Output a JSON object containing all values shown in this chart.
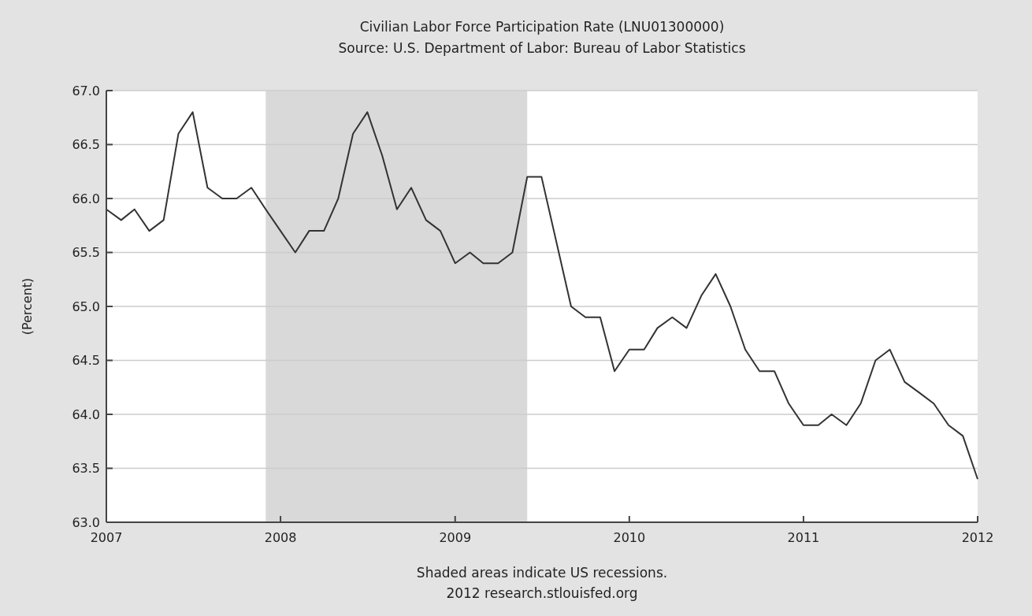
{
  "chart_data": {
    "type": "line",
    "title": "Civilian Labor Force Participation Rate (LNU01300000)",
    "subtitle": "Source: U.S. Department of Labor: Bureau of Labor Statistics",
    "ylabel": "(Percent)",
    "annotations": [
      "Shaded areas indicate US recessions.",
      "2012 research.stlouisfed.org"
    ],
    "x": [
      "2007-01",
      "2007-02",
      "2007-03",
      "2007-04",
      "2007-05",
      "2007-06",
      "2007-07",
      "2007-08",
      "2007-09",
      "2007-10",
      "2007-11",
      "2007-12",
      "2008-01",
      "2008-02",
      "2008-03",
      "2008-04",
      "2008-05",
      "2008-06",
      "2008-07",
      "2008-08",
      "2008-09",
      "2008-10",
      "2008-11",
      "2008-12",
      "2009-01",
      "2009-02",
      "2009-03",
      "2009-04",
      "2009-05",
      "2009-06",
      "2009-07",
      "2009-08",
      "2009-09",
      "2009-10",
      "2009-11",
      "2009-12",
      "2010-01",
      "2010-02",
      "2010-03",
      "2010-04",
      "2010-05",
      "2010-06",
      "2010-07",
      "2010-08",
      "2010-09",
      "2010-10",
      "2010-11",
      "2010-12",
      "2011-01",
      "2011-02",
      "2011-03",
      "2011-04",
      "2011-05",
      "2011-06",
      "2011-07",
      "2011-08",
      "2011-09",
      "2011-10",
      "2011-11",
      "2011-12",
      "2012-01"
    ],
    "series": [
      {
        "color": "#333333",
        "values": [
          65.9,
          65.8,
          65.9,
          65.7,
          65.8,
          66.6,
          66.8,
          66.1,
          66.0,
          66.0,
          66.1,
          65.9,
          65.7,
          65.5,
          65.7,
          65.7,
          66.0,
          66.6,
          66.8,
          66.4,
          65.9,
          66.1,
          65.8,
          65.7,
          65.4,
          65.5,
          65.4,
          65.4,
          65.5,
          66.2,
          66.2,
          65.6,
          65.0,
          64.9,
          64.9,
          64.4,
          64.6,
          64.6,
          64.8,
          64.9,
          64.8,
          65.1,
          65.3,
          65.0,
          64.6,
          64.4,
          64.4,
          64.1,
          63.9,
          63.9,
          64.0,
          63.9,
          64.1,
          64.5,
          64.6,
          64.3,
          64.2,
          64.1,
          63.9,
          63.8,
          63.4
        ]
      }
    ],
    "xlim": [
      "2007-01",
      "2012-01"
    ],
    "xticks": [
      {
        "value": "2007-01",
        "label": "2007"
      },
      {
        "value": "2008-01",
        "label": "2008"
      },
      {
        "value": "2009-01",
        "label": "2009"
      },
      {
        "value": "2010-01",
        "label": "2010"
      },
      {
        "value": "2011-01",
        "label": "2011"
      },
      {
        "value": "2012-01",
        "label": "2012"
      }
    ],
    "ylim": [
      63.0,
      67.0
    ],
    "yticks": [
      {
        "value": 63.0,
        "label": "63.0"
      },
      {
        "value": 63.5,
        "label": "63.5"
      },
      {
        "value": 64.0,
        "label": "64.0"
      },
      {
        "value": 64.5,
        "label": "64.5"
      },
      {
        "value": 65.0,
        "label": "65.0"
      },
      {
        "value": 65.5,
        "label": "65.5"
      },
      {
        "value": 66.0,
        "label": "66.0"
      },
      {
        "value": 66.5,
        "label": "66.5"
      },
      {
        "value": 67.0,
        "label": "67.0"
      }
    ],
    "bands": [
      {
        "axis": "x",
        "from": "2007-12",
        "to": "2009-06",
        "color": "#d9d9d9"
      }
    ],
    "grid": "y",
    "marker": "none",
    "line_style": "solid"
  }
}
